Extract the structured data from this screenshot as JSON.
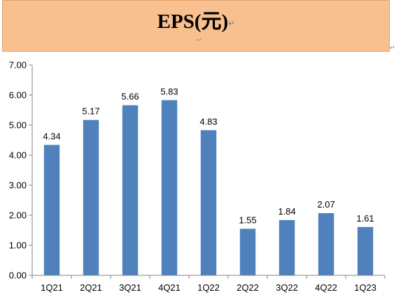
{
  "header": {
    "title": "EPS(元)",
    "bg_color": "#f8c08e",
    "return_mark": "↵",
    "return_mark_small": "↵",
    "side_mark": "↵"
  },
  "chart_data": {
    "type": "bar",
    "title": "EPS(元)",
    "xlabel": "",
    "ylabel": "",
    "categories": [
      "1Q21",
      "2Q21",
      "3Q21",
      "4Q21",
      "1Q22",
      "2Q22",
      "3Q22",
      "4Q22",
      "1Q23"
    ],
    "values": [
      4.34,
      5.17,
      5.66,
      5.83,
      4.83,
      1.55,
      1.84,
      2.07,
      1.61
    ],
    "data_labels": [
      "4.34",
      "5.17",
      "5.66",
      "5.83",
      "4.83",
      "1.55",
      "1.84",
      "2.07",
      "1.61"
    ],
    "ylim": [
      0,
      7
    ],
    "yticks": [
      "0.00",
      "1.00",
      "2.00",
      "3.00",
      "4.00",
      "5.00",
      "6.00",
      "7.00"
    ],
    "grid": false,
    "legend": "none",
    "bar_color": "#4f81bd"
  }
}
